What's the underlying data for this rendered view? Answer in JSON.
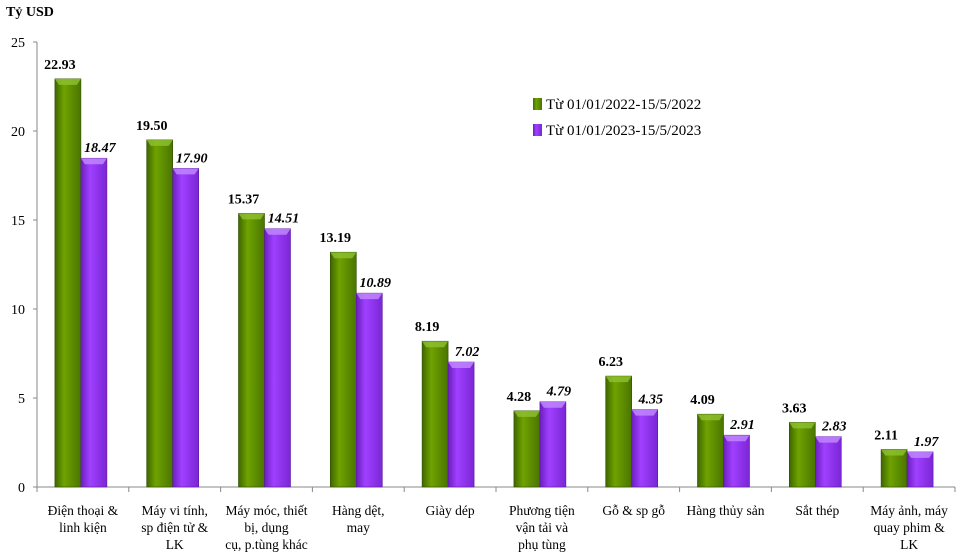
{
  "chart_data": {
    "type": "bar",
    "title": "",
    "ylabel": "Tỷ USD",
    "xlabel": "",
    "ylim": [
      0,
      25
    ],
    "yticks": [
      0,
      5,
      10,
      15,
      20,
      25
    ],
    "grid": false,
    "legend_position": "top-right",
    "categories": [
      [
        "Điện thoại &",
        "linh kiện"
      ],
      [
        "Máy vi tính,",
        "sp điện tử &",
        "LK"
      ],
      [
        "Máy móc, thiết",
        "bị, dụng",
        "cụ, p.tùng khác"
      ],
      [
        "Hàng dệt,",
        "may"
      ],
      [
        "Giày dép"
      ],
      [
        "Phương tiện",
        "vận tải và",
        "phụ tùng"
      ],
      [
        "Gỗ & sp gỗ"
      ],
      [
        "Hàng thủy sản"
      ],
      [
        "Sắt thép"
      ],
      [
        "Máy ảnh, máy",
        "quay phim &",
        "LK"
      ]
    ],
    "series": [
      {
        "name": "Từ 01/01/2022-15/5/2022",
        "color": "#5f8f00",
        "values": [
          22.93,
          19.5,
          15.37,
          13.19,
          8.19,
          4.28,
          6.23,
          4.09,
          3.63,
          2.11
        ],
        "labels": [
          "22.93",
          "19.50",
          "15.37",
          "13.19",
          "8.19",
          "4.28",
          "6.23",
          "4.09",
          "3.63",
          "2.11"
        ]
      },
      {
        "name": "Từ 01/01/2023-15/5/2023",
        "color": "#9933ff",
        "values": [
          18.47,
          17.9,
          14.51,
          10.89,
          7.02,
          4.79,
          4.35,
          2.91,
          2.83,
          1.97
        ],
        "labels": [
          "18.47",
          "17.90",
          "14.51",
          "10.89",
          "7.02",
          "4.79",
          "4.35",
          "2.91",
          "2.83",
          "1.97"
        ]
      }
    ]
  }
}
